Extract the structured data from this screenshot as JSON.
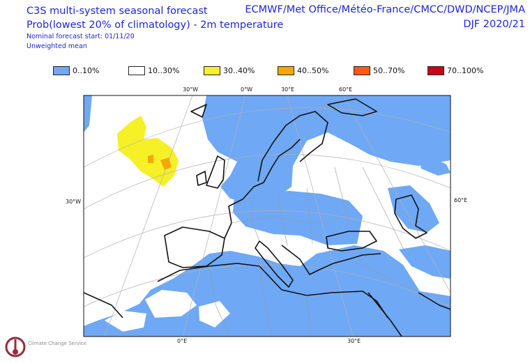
{
  "header": {
    "title": "C3S multi-system seasonal forecast",
    "subtitle": "Prob(lowest 20% of climatology) - 2m temperature",
    "forecast_start": "Nominal forecast start: 01/11/20",
    "mean_type": "Unweighted mean",
    "centres": "ECMWF/Met Office/Météo-France/CMCC/DWD/NCEP/JMA",
    "season": "DJF 2020/21"
  },
  "legend": [
    {
      "label": "0..10%",
      "color": "#6fa8f5"
    },
    {
      "label": "10..30%",
      "color": "#ffffff"
    },
    {
      "label": "30..40%",
      "color": "#f6f026"
    },
    {
      "label": "40..50%",
      "color": "#f7a700"
    },
    {
      "label": "50..70%",
      "color": "#ff5a12"
    },
    {
      "label": "70..100%",
      "color": "#cc0018"
    }
  ],
  "axes": {
    "top": [
      "30°W",
      "0°W",
      "30°E",
      "60°E"
    ],
    "left": "30°W",
    "right": "60°E",
    "bottom": [
      "0°E",
      "30°E"
    ]
  },
  "logo": {
    "name": "Climate Change Service"
  }
}
